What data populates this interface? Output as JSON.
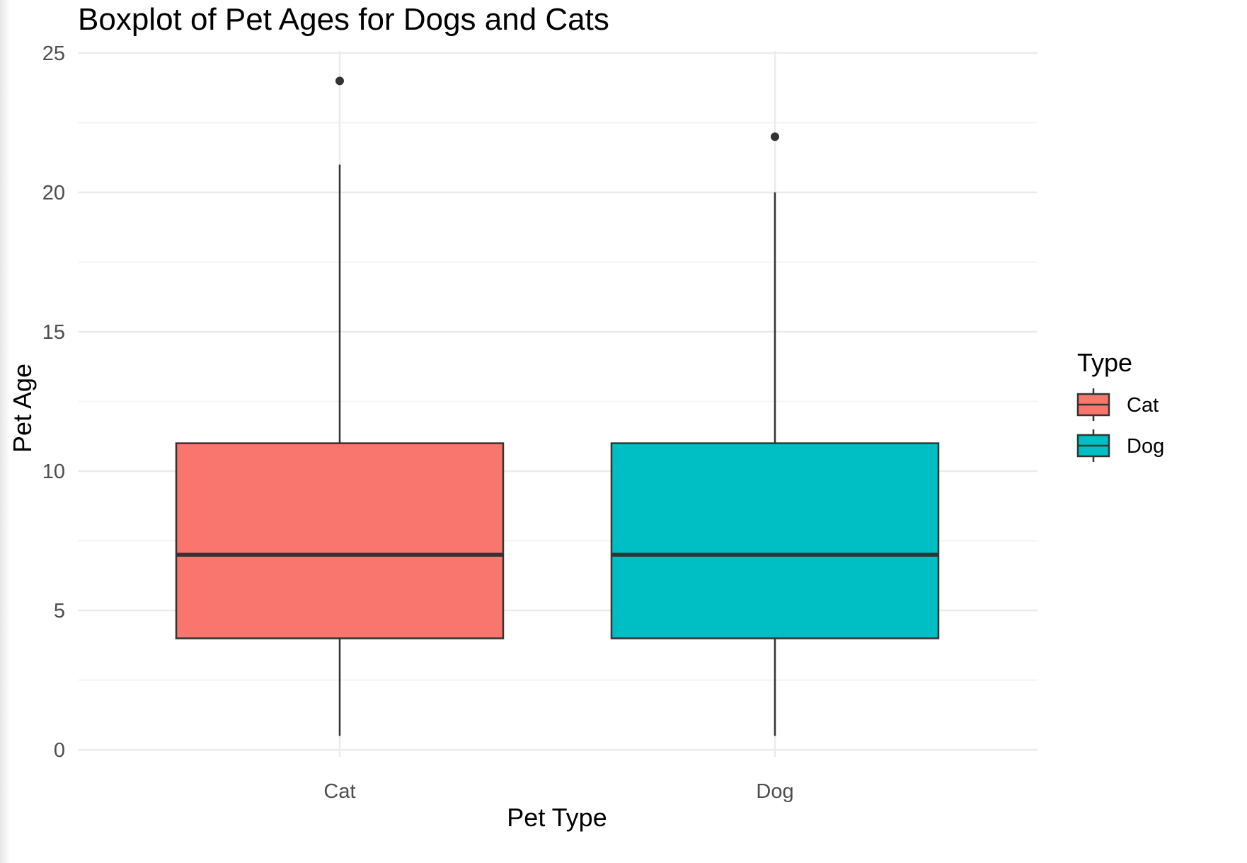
{
  "chart_data": {
    "type": "boxplot",
    "title": "Boxplot of Pet Ages for Dogs and Cats",
    "xlabel": "Pet Type",
    "ylabel": "Pet Age",
    "ylim": [
      0,
      25
    ],
    "yticks": [
      0,
      5,
      10,
      15,
      20,
      25
    ],
    "grid": true,
    "legend": {
      "title": "Type",
      "position": "right",
      "entries": [
        {
          "label": "Cat",
          "color": "#F8766D"
        },
        {
          "label": "Dog",
          "color": "#00BFC4"
        }
      ]
    },
    "categories": [
      "Cat",
      "Dog"
    ],
    "boxes": [
      {
        "category": "Cat",
        "color": "#F8766D",
        "min": 0.5,
        "q1": 4,
        "median": 7,
        "q3": 11,
        "max": 21,
        "outliers": [
          24
        ]
      },
      {
        "category": "Dog",
        "color": "#00BFC4",
        "min": 0.5,
        "q1": 4,
        "median": 7,
        "q3": 11,
        "max": 20,
        "outliers": [
          22
        ]
      }
    ]
  }
}
